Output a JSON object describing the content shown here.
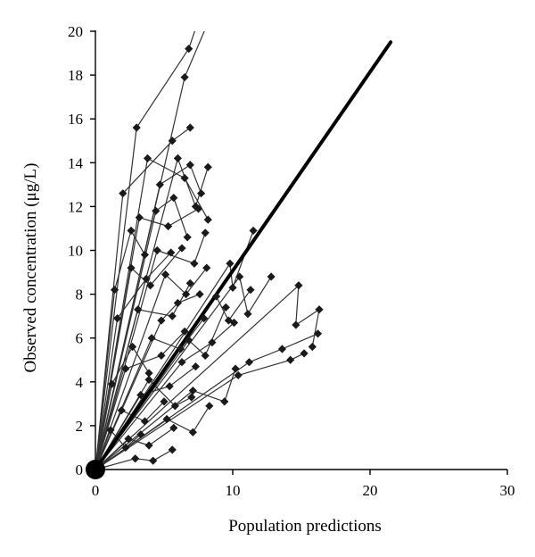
{
  "chart_data": {
    "type": "scatter",
    "xlabel": "Population predictions",
    "ylabel": "Observed concentration (μg/L)",
    "xlim": [
      0,
      30
    ],
    "ylim": [
      0,
      20
    ],
    "xticks": [
      0,
      10,
      20,
      30
    ],
    "yticks": [
      0,
      2,
      4,
      6,
      8,
      10,
      12,
      14,
      16,
      18,
      20
    ],
    "grid": false,
    "marker": "diamond",
    "colors": {
      "lines": "#333333",
      "markers": "#1a1a1a",
      "identity": "#000000"
    },
    "identity_line": {
      "from": [
        0,
        0
      ],
      "to": [
        21.5,
        19.5
      ]
    },
    "origin_marker": [
      0,
      0
    ],
    "profiles": [
      [
        [
          0,
          0
        ],
        [
          3.0,
          15.6
        ],
        [
          6.8,
          19.2
        ],
        [
          7.5,
          20.5
        ]
      ],
      [
        [
          0,
          0
        ],
        [
          6.5,
          17.9
        ],
        [
          8.2,
          20.4
        ]
      ],
      [
        [
          0,
          0
        ],
        [
          2.0,
          12.6
        ],
        [
          5.6,
          15.0
        ],
        [
          6.9,
          15.6
        ]
      ],
      [
        [
          0,
          0
        ],
        [
          3.8,
          14.2
        ],
        [
          6.5,
          13.3
        ],
        [
          8.2,
          11.4
        ]
      ],
      [
        [
          0,
          0
        ],
        [
          4.7,
          13.0
        ],
        [
          6.9,
          13.9
        ],
        [
          7.7,
          12.6
        ]
      ],
      [
        [
          0,
          0
        ],
        [
          3.2,
          11.5
        ],
        [
          5.3,
          11.1
        ],
        [
          7.5,
          11.9
        ]
      ],
      [
        [
          0,
          0
        ],
        [
          4.5,
          10.0
        ],
        [
          7.2,
          9.4
        ],
        [
          8.0,
          10.8
        ]
      ],
      [
        [
          0,
          0
        ],
        [
          6.0,
          14.2
        ],
        [
          7.3,
          12.0
        ],
        [
          8.2,
          13.8
        ]
      ],
      [
        [
          0,
          0
        ],
        [
          14.8,
          8.4
        ],
        [
          14.6,
          6.6
        ],
        [
          16.3,
          7.3
        ],
        [
          15.8,
          5.6
        ]
      ],
      [
        [
          0,
          0
        ],
        [
          10.5,
          8.8
        ],
        [
          11.1,
          7.1
        ],
        [
          12.8,
          8.8
        ]
      ],
      [
        [
          0,
          0
        ],
        [
          9.8,
          9.4
        ],
        [
          10.0,
          8.3
        ],
        [
          11.5,
          10.9
        ]
      ],
      [
        [
          0,
          0
        ],
        [
          11.2,
          4.9
        ],
        [
          13.6,
          5.5
        ],
        [
          16.2,
          6.2
        ]
      ],
      [
        [
          0,
          0
        ],
        [
          10.4,
          4.3
        ],
        [
          14.2,
          5.0
        ],
        [
          15.2,
          5.3
        ]
      ],
      [
        [
          0,
          0
        ],
        [
          8.8,
          7.9
        ],
        [
          9.7,
          6.8
        ],
        [
          11.3,
          8.2
        ]
      ],
      [
        [
          0,
          0
        ],
        [
          6.3,
          4.9
        ],
        [
          8.5,
          5.8
        ],
        [
          10.1,
          6.7
        ]
      ],
      [
        [
          0,
          0
        ],
        [
          5.2,
          2.3
        ],
        [
          7.1,
          1.7
        ],
        [
          8.3,
          2.9
        ]
      ],
      [
        [
          0,
          0
        ],
        [
          7.1,
          3.6
        ],
        [
          9.4,
          3.1
        ],
        [
          10.2,
          4.6
        ]
      ],
      [
        [
          0,
          0
        ],
        [
          2.9,
          0.5
        ],
        [
          4.2,
          0.4
        ],
        [
          5.6,
          0.9
        ]
      ],
      [
        [
          0,
          0
        ],
        [
          1.6,
          6.9
        ],
        [
          3.7,
          8.7
        ],
        [
          5.5,
          9.9
        ]
      ],
      [
        [
          0,
          0
        ],
        [
          2.6,
          9.2
        ],
        [
          4.0,
          8.4
        ],
        [
          6.3,
          10.1
        ]
      ],
      [
        [
          0,
          0
        ],
        [
          3.1,
          7.3
        ],
        [
          5.6,
          7.0
        ],
        [
          6.9,
          8.5
        ]
      ],
      [
        [
          0,
          0
        ],
        [
          4.1,
          6.0
        ],
        [
          6.2,
          5.5
        ],
        [
          7.9,
          6.9
        ]
      ],
      [
        [
          0,
          0
        ],
        [
          2.2,
          4.6
        ],
        [
          4.8,
          5.2
        ],
        [
          6.5,
          6.3
        ]
      ],
      [
        [
          0,
          0
        ],
        [
          3.3,
          3.4
        ],
        [
          5.4,
          3.8
        ],
        [
          7.3,
          4.7
        ]
      ],
      [
        [
          0,
          0
        ],
        [
          1.9,
          2.7
        ],
        [
          3.6,
          2.2
        ],
        [
          5.0,
          3.1
        ]
      ],
      [
        [
          0,
          0
        ],
        [
          1.2,
          3.9
        ],
        [
          2.7,
          5.6
        ],
        [
          3.9,
          4.4
        ]
      ],
      [
        [
          0,
          0
        ],
        [
          4.4,
          11.8
        ],
        [
          5.7,
          12.4
        ],
        [
          6.7,
          10.6
        ]
      ],
      [
        [
          0,
          0
        ],
        [
          5.1,
          8.9
        ],
        [
          6.6,
          8.0
        ],
        [
          8.1,
          9.2
        ]
      ],
      [
        [
          0,
          0
        ],
        [
          1.4,
          8.2
        ],
        [
          2.6,
          10.9
        ],
        [
          3.6,
          9.8
        ]
      ],
      [
        [
          0,
          0
        ],
        [
          4.8,
          6.8
        ],
        [
          6.0,
          7.6
        ],
        [
          7.6,
          8.0
        ]
      ],
      [
        [
          0,
          0
        ],
        [
          6.8,
          5.9
        ],
        [
          8.0,
          5.2
        ],
        [
          9.5,
          7.4
        ]
      ],
      [
        [
          0,
          0
        ],
        [
          3.9,
          4.1
        ],
        [
          5.8,
          2.9
        ],
        [
          7.0,
          3.3
        ]
      ],
      [
        [
          0,
          0
        ],
        [
          2.4,
          1.4
        ],
        [
          3.9,
          1.1
        ],
        [
          5.7,
          1.9
        ]
      ],
      [
        [
          0,
          0
        ],
        [
          1.1,
          1.8
        ],
        [
          2.2,
          1.0
        ],
        [
          3.3,
          1.6
        ]
      ]
    ]
  }
}
